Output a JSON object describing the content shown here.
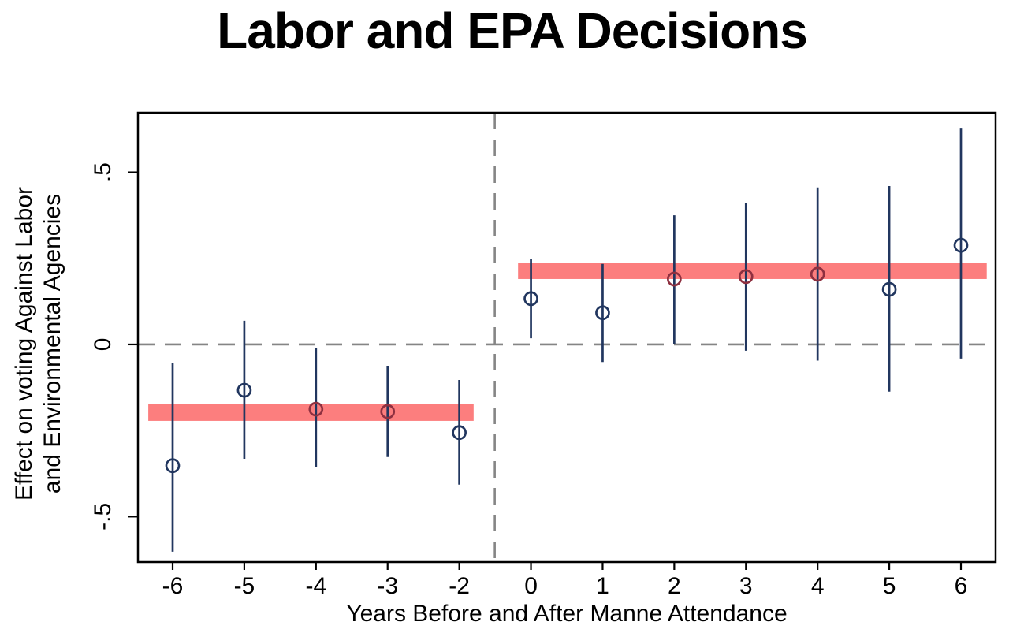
{
  "title": "Labor and EPA Decisions",
  "chart_data": {
    "type": "scatter",
    "title": "Labor and EPA Decisions",
    "xlabel": "Years Before and After Manne Attendance",
    "ylabel": "Effect on voting Against Labor and Environmental Agencies",
    "ylabel_lines": [
      "Effect on voting Against Labor",
      "and Environmental Agencies"
    ],
    "categories": [
      "-6",
      "-5",
      "-4",
      "-3",
      "-2",
      "0",
      "1",
      "2",
      "3",
      "4",
      "5",
      "6"
    ],
    "omitted_category": "-1",
    "series": [
      {
        "name": "event-study-coefficients",
        "points": [
          {
            "x": "-6",
            "value": -0.352,
            "ci_low": -0.602,
            "ci_high": -0.053,
            "marker": "navy"
          },
          {
            "x": "-5",
            "value": -0.133,
            "ci_low": -0.332,
            "ci_high": 0.069,
            "marker": "navy"
          },
          {
            "x": "-4",
            "value": -0.188,
            "ci_low": -0.357,
            "ci_high": -0.011,
            "marker": "maroon"
          },
          {
            "x": "-3",
            "value": -0.195,
            "ci_low": -0.327,
            "ci_high": -0.062,
            "marker": "maroon"
          },
          {
            "x": "-2",
            "value": -0.256,
            "ci_low": -0.407,
            "ci_high": -0.103,
            "marker": "navy"
          },
          {
            "x": "0",
            "value": 0.133,
            "ci_low": 0.018,
            "ci_high": 0.249,
            "marker": "navy"
          },
          {
            "x": "1",
            "value": 0.092,
            "ci_low": -0.051,
            "ci_high": 0.234,
            "marker": "navy"
          },
          {
            "x": "2",
            "value": 0.19,
            "ci_low": 0.0,
            "ci_high": 0.375,
            "marker": "maroon"
          },
          {
            "x": "3",
            "value": 0.197,
            "ci_low": -0.018,
            "ci_high": 0.41,
            "marker": "maroon"
          },
          {
            "x": "4",
            "value": 0.204,
            "ci_low": -0.047,
            "ci_high": 0.456,
            "marker": "maroon"
          },
          {
            "x": "5",
            "value": 0.16,
            "ci_low": -0.137,
            "ci_high": 0.46,
            "marker": "navy"
          },
          {
            "x": "6",
            "value": 0.288,
            "ci_low": -0.041,
            "ci_high": 0.627,
            "marker": "navy"
          }
        ]
      }
    ],
    "bands": [
      {
        "name": "pre-period-average",
        "y_top": -0.174,
        "y_bottom": -0.222,
        "index_start": -0.34,
        "index_end": 4.2
      },
      {
        "name": "post-period-average",
        "y_top": 0.237,
        "y_bottom": 0.19,
        "index_start": 4.82,
        "index_end": 11.36
      }
    ],
    "reference_lines": {
      "horizontal_zero": {
        "value": 0,
        "style": "dashed"
      },
      "vertical_treatment": {
        "index": 4.495,
        "style": "dashed"
      }
    },
    "y_ticks": [
      {
        "value": 0.5,
        "label": ".5"
      },
      {
        "value": 0,
        "label": "0"
      },
      {
        "value": -0.5,
        "label": "-.5"
      }
    ],
    "ylim": [
      -0.632,
      0.673
    ],
    "grid": false,
    "legend": false,
    "colors": {
      "navy": "#21365f",
      "maroon": "#8e3040",
      "band": "#fc7e7e",
      "dash_gray": "#858585",
      "axis_black": "#000000"
    }
  }
}
